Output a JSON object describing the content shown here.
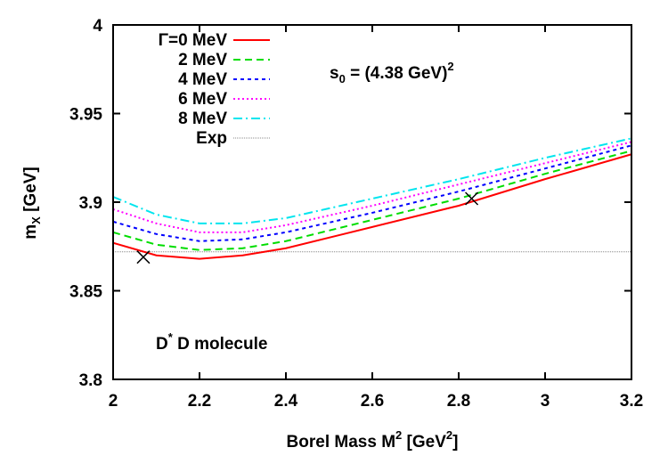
{
  "chart_data": {
    "type": "line",
    "xlabel": {
      "main": "Borel Mass M",
      "sup": "2",
      "unit": " [GeV",
      "unit_sup": "2",
      "end": "]"
    },
    "ylabel": {
      "main": "m",
      "sub": "X",
      "unit": " [GeV]"
    },
    "xlim": [
      2,
      3.2
    ],
    "ylim": [
      3.8,
      4
    ],
    "xticks": [
      "2",
      "2.2",
      "2.4",
      "2.6",
      "2.8",
      "3",
      "3.2"
    ],
    "yticks": [
      "3.8",
      "3.85",
      "3.9",
      "3.95",
      "4"
    ],
    "x": [
      2,
      2.1,
      2.2,
      2.3,
      2.4,
      2.6,
      2.8,
      3.0,
      3.2
    ],
    "series": [
      {
        "name": "Γ=0 MeV",
        "color": "#ff0000",
        "dash": "",
        "values": [
          3.877,
          3.87,
          3.868,
          3.87,
          3.874,
          3.886,
          3.898,
          3.913,
          3.927
        ]
      },
      {
        "name": "2 MeV",
        "color": "#00dd00",
        "dash": "8,5",
        "values": [
          3.883,
          3.876,
          3.873,
          3.874,
          3.878,
          3.89,
          3.902,
          3.916,
          3.929
        ]
      },
      {
        "name": "4 MeV",
        "color": "#0000ff",
        "dash": "4,4",
        "values": [
          3.889,
          3.882,
          3.878,
          3.879,
          3.883,
          3.894,
          3.906,
          3.919,
          3.932
        ]
      },
      {
        "name": "6 MeV",
        "color": "#ff00ff",
        "dash": "2,3",
        "values": [
          3.896,
          3.888,
          3.883,
          3.883,
          3.887,
          3.898,
          3.91,
          3.922,
          3.934
        ]
      },
      {
        "name": "8 MeV",
        "color": "#00e5ee",
        "dash": "10,4,2,4",
        "values": [
          3.903,
          3.893,
          3.888,
          3.888,
          3.891,
          3.902,
          3.913,
          3.925,
          3.936
        ]
      }
    ],
    "exp": {
      "name": "Exp",
      "value": 3.872,
      "color": "#888888"
    },
    "markers": [
      {
        "x": 2.07,
        "y": 3.869
      },
      {
        "x": 2.83,
        "y": 3.902
      }
    ],
    "annotations": {
      "s0": {
        "main": "s",
        "sub": "0",
        "rest": " = (4.38 GeV)",
        "sup": "2"
      },
      "molecule": {
        "main": "D",
        "sup": "*",
        "rest": " D molecule"
      }
    },
    "legend": "top-left",
    "grid": false
  }
}
